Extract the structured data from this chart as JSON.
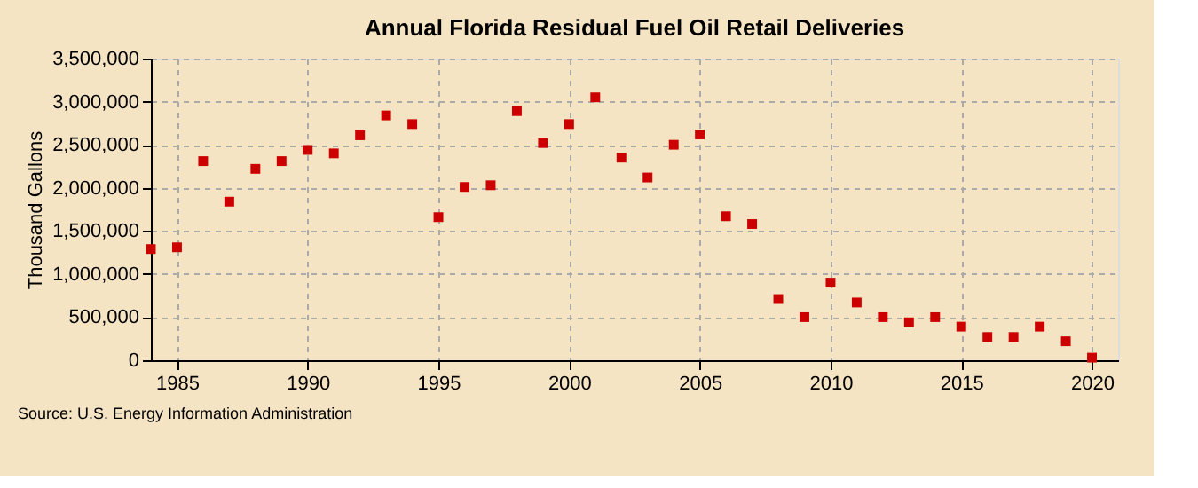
{
  "chart_data": {
    "type": "scatter",
    "title": "Annual Florida Residual Fuel Oil Retail Deliveries",
    "ylabel": "Thousand Gallons",
    "x": [
      1984,
      1985,
      1986,
      1987,
      1988,
      1989,
      1990,
      1991,
      1992,
      1993,
      1994,
      1995,
      1996,
      1997,
      1998,
      1999,
      2000,
      2001,
      2002,
      2003,
      2004,
      2005,
      2006,
      2007,
      2008,
      2009,
      2010,
      2011,
      2012,
      2013,
      2014,
      2015,
      2016,
      2017,
      2018,
      2019,
      2020
    ],
    "series": [
      {
        "color": "#cc0000",
        "values": [
          1290000,
          1310000,
          2310000,
          1840000,
          2220000,
          2310000,
          2440000,
          2400000,
          2610000,
          2840000,
          2740000,
          1660000,
          2010000,
          2030000,
          2890000,
          2520000,
          2740000,
          3050000,
          2350000,
          2120000,
          2500000,
          2620000,
          1670000,
          1580000,
          710000,
          500000,
          900000,
          670000,
          500000,
          440000,
          500000,
          390000,
          270000,
          270000,
          390000,
          220000,
          30000
        ]
      }
    ],
    "xlim": [
      1984,
      2021
    ],
    "xticks": [
      1985,
      1990,
      1995,
      2000,
      2005,
      2010,
      2015,
      2020
    ],
    "ylim": [
      0,
      3500000
    ],
    "yticks": [
      0,
      {
        "value": 500000,
        "label": "500,000"
      },
      {
        "value": 1000000,
        "label": "1,000,000"
      },
      {
        "value": 1500000,
        "label": "1,500,000"
      },
      {
        "value": 2000000,
        "label": "2,000,000"
      },
      {
        "value": 2500000,
        "label": "2,500,000"
      },
      {
        "value": 3000000,
        "label": "3,000,000"
      },
      {
        "value": 3500000,
        "label": "3,500,000"
      }
    ],
    "grid": true,
    "marker": "square",
    "legend": false,
    "annotations": [
      "Source: U.S. Energy Information Administration"
    ]
  }
}
